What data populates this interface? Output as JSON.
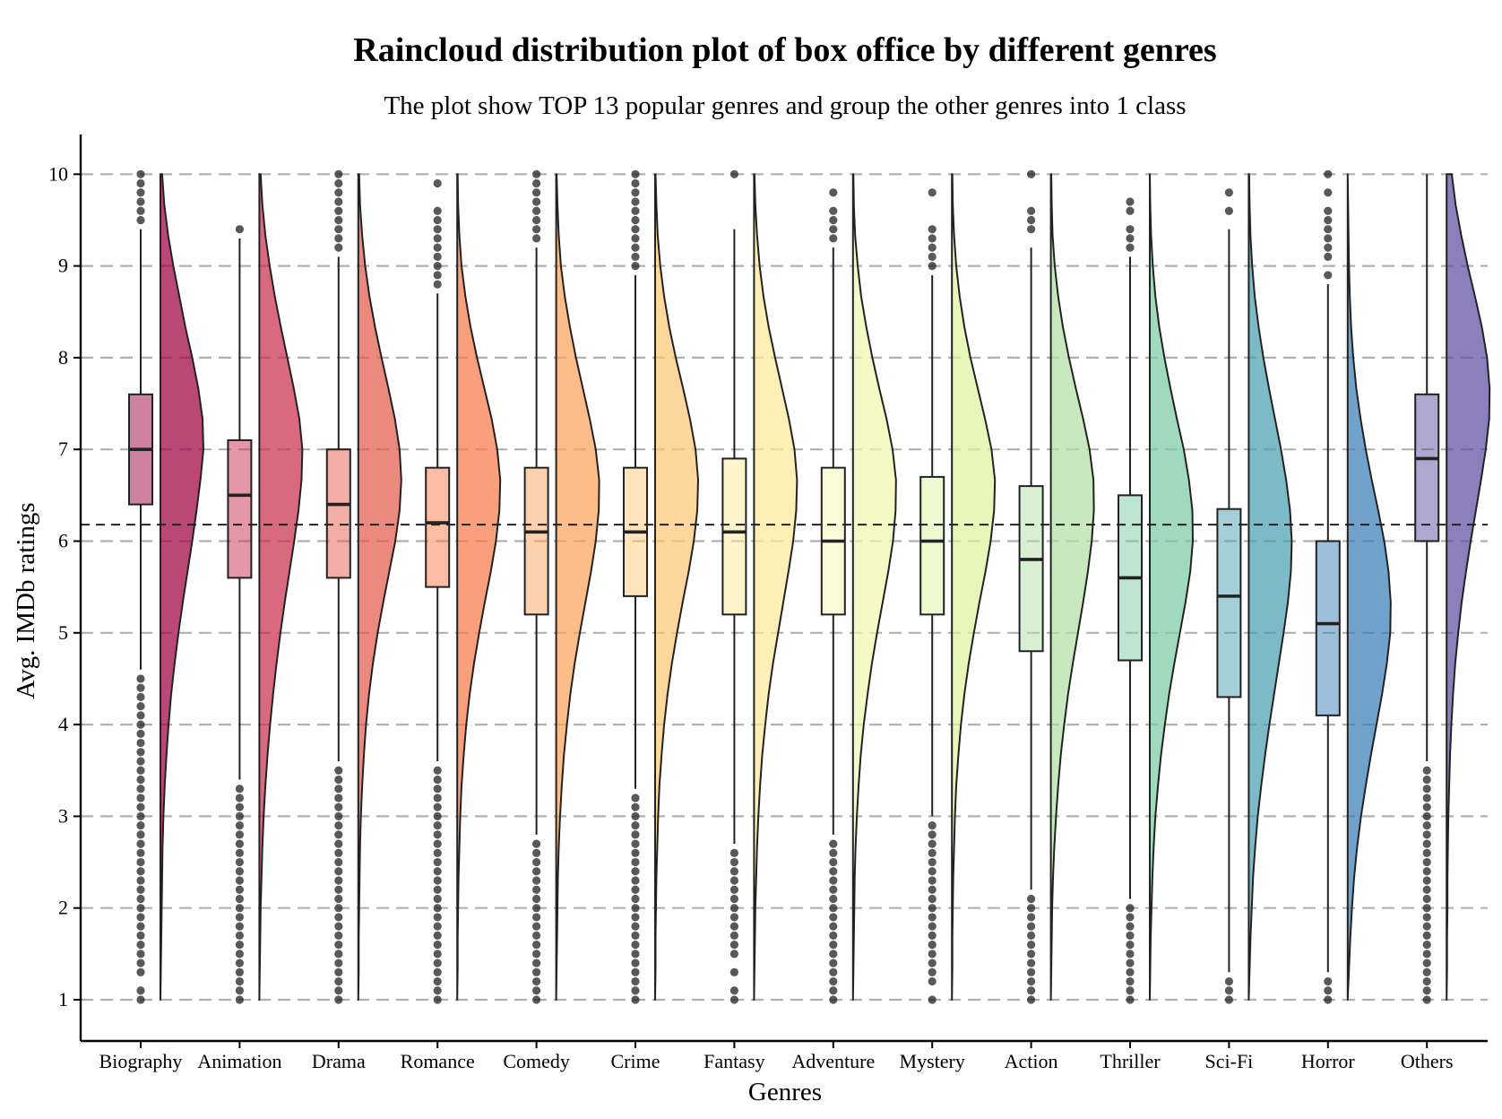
{
  "chart_data": {
    "type": "raincloud",
    "title": "Raincloud distribution plot of box office by different genres",
    "subtitle": "The plot show TOP 13 popular genres and group the other genres into 1 class",
    "xlabel": "Genres",
    "ylabel": "Avg. IMDb ratings",
    "ylim": [
      0.55,
      10.45
    ],
    "yticks": [
      1,
      2,
      3,
      4,
      5,
      6,
      7,
      8,
      9,
      10
    ],
    "grid": "horizontal dashed",
    "reference_line": 6.18,
    "categories": [
      "Biography",
      "Animation",
      "Drama",
      "Romance",
      "Comedy",
      "Crime",
      "Fantasy",
      "Adventure",
      "Mystery",
      "Action",
      "Thriller",
      "Sci-Fi",
      "Horror",
      "Others"
    ],
    "series": [
      {
        "genre": "Biography",
        "color": "#9E0142",
        "q1": 6.4,
        "median": 7.0,
        "q3": 7.6,
        "whisker_low": 4.6,
        "whisker_high": 9.4,
        "outliers_low": [
          1.0,
          1.1,
          1.3,
          1.4,
          1.5,
          1.6,
          1.7,
          1.8,
          1.9,
          2.0,
          2.1,
          2.2,
          2.3,
          2.4,
          2.5,
          2.6,
          2.7,
          2.8,
          2.9,
          3.0,
          3.1,
          3.2,
          3.3,
          3.4,
          3.5,
          3.6,
          3.7,
          3.8,
          3.9,
          4.0,
          4.1,
          4.2,
          4.3,
          4.4,
          4.5
        ],
        "outliers_high": [
          9.5,
          9.6,
          9.7,
          9.8,
          9.9,
          10.0
        ],
        "density": [
          0.0,
          0.01,
          0.02,
          0.03,
          0.04,
          0.05,
          0.07,
          0.1,
          0.14,
          0.19,
          0.25,
          0.33,
          0.42,
          0.52,
          0.63,
          0.74,
          0.84,
          0.93,
          1.0,
          0.98,
          0.88,
          0.74,
          0.58,
          0.44,
          0.3,
          0.18,
          0.09,
          0.04
        ]
      },
      {
        "genre": "Animation",
        "color": "#C92F4E",
        "q1": 5.6,
        "median": 6.5,
        "q3": 7.1,
        "whisker_low": 3.4,
        "whisker_high": 9.3,
        "outliers_low": [
          1.0,
          1.1,
          1.2,
          1.3,
          1.4,
          1.5,
          1.6,
          1.7,
          1.8,
          1.9,
          2.0,
          2.1,
          2.2,
          2.3,
          2.4,
          2.5,
          2.6,
          2.7,
          2.8,
          2.9,
          3.0,
          3.1,
          3.2,
          3.3
        ],
        "outliers_high": [
          9.4
        ],
        "density": [
          0.0,
          0.01,
          0.02,
          0.03,
          0.05,
          0.07,
          0.1,
          0.14,
          0.19,
          0.25,
          0.32,
          0.4,
          0.49,
          0.59,
          0.7,
          0.81,
          0.91,
          0.98,
          1.0,
          0.93,
          0.8,
          0.65,
          0.5,
          0.36,
          0.24,
          0.14,
          0.07,
          0.03
        ]
      },
      {
        "genre": "Drama",
        "color": "#E55B4E",
        "q1": 5.6,
        "median": 6.4,
        "q3": 7.0,
        "whisker_low": 3.6,
        "whisker_high": 9.1,
        "outliers_low": [
          1.0,
          1.1,
          1.2,
          1.3,
          1.4,
          1.5,
          1.6,
          1.7,
          1.8,
          1.9,
          2.0,
          2.1,
          2.2,
          2.3,
          2.4,
          2.5,
          2.6,
          2.7,
          2.8,
          2.9,
          3.0,
          3.1,
          3.2,
          3.3,
          3.4,
          3.5
        ],
        "outliers_high": [
          9.2,
          9.3,
          9.4,
          9.5,
          9.6,
          9.7,
          9.8,
          9.9,
          10.0
        ],
        "density": [
          0.0,
          0.01,
          0.01,
          0.02,
          0.03,
          0.04,
          0.06,
          0.09,
          0.13,
          0.18,
          0.25,
          0.34,
          0.45,
          0.58,
          0.72,
          0.86,
          0.96,
          1.0,
          0.96,
          0.85,
          0.7,
          0.54,
          0.39,
          0.26,
          0.16,
          0.09,
          0.04,
          0.02
        ]
      },
      {
        "genre": "Romance",
        "color": "#F67A49",
        "q1": 5.5,
        "median": 6.2,
        "q3": 6.8,
        "whisker_low": 3.6,
        "whisker_high": 8.7,
        "outliers_low": [
          1.0,
          1.1,
          1.2,
          1.3,
          1.4,
          1.5,
          1.6,
          1.7,
          1.8,
          1.9,
          2.0,
          2.1,
          2.2,
          2.3,
          2.4,
          2.5,
          2.6,
          2.7,
          2.8,
          2.9,
          3.0,
          3.1,
          3.2,
          3.3,
          3.4,
          3.5
        ],
        "outliers_high": [
          8.8,
          8.9,
          9.0,
          9.1,
          9.2,
          9.3,
          9.4,
          9.5,
          9.6,
          9.9
        ],
        "density": [
          0.0,
          0.01,
          0.01,
          0.02,
          0.03,
          0.05,
          0.07,
          0.1,
          0.15,
          0.21,
          0.29,
          0.39,
          0.51,
          0.64,
          0.78,
          0.9,
          0.98,
          1.0,
          0.93,
          0.8,
          0.63,
          0.46,
          0.31,
          0.19,
          0.1,
          0.05,
          0.02,
          0.01
        ]
      },
      {
        "genre": "Comedy",
        "color": "#FBA45C",
        "q1": 5.2,
        "median": 6.1,
        "q3": 6.8,
        "whisker_low": 2.8,
        "whisker_high": 9.2,
        "outliers_low": [
          1.0,
          1.1,
          1.2,
          1.3,
          1.4,
          1.5,
          1.6,
          1.7,
          1.8,
          1.9,
          2.0,
          2.1,
          2.2,
          2.3,
          2.4,
          2.5,
          2.6,
          2.7
        ],
        "outliers_high": [
          9.3,
          9.4,
          9.5,
          9.6,
          9.7,
          9.8,
          9.9,
          10.0
        ],
        "density": [
          0.0,
          0.01,
          0.02,
          0.03,
          0.04,
          0.06,
          0.09,
          0.13,
          0.18,
          0.25,
          0.33,
          0.43,
          0.55,
          0.68,
          0.81,
          0.92,
          0.99,
          1.0,
          0.92,
          0.78,
          0.62,
          0.46,
          0.32,
          0.2,
          0.11,
          0.06,
          0.03,
          0.01
        ]
      },
      {
        "genre": "Crime",
        "color": "#FDC877",
        "q1": 5.4,
        "median": 6.1,
        "q3": 6.8,
        "whisker_low": 3.3,
        "whisker_high": 8.9,
        "outliers_low": [
          1.0,
          1.1,
          1.2,
          1.3,
          1.4,
          1.5,
          1.6,
          1.7,
          1.8,
          1.9,
          2.0,
          2.1,
          2.2,
          2.3,
          2.4,
          2.5,
          2.6,
          2.7,
          2.8,
          2.9,
          3.0,
          3.1,
          3.2
        ],
        "outliers_high": [
          9.0,
          9.1,
          9.2,
          9.3,
          9.4,
          9.5,
          9.6,
          9.7,
          9.8,
          9.9,
          10.0
        ],
        "density": [
          0.0,
          0.01,
          0.01,
          0.02,
          0.03,
          0.05,
          0.07,
          0.1,
          0.15,
          0.21,
          0.29,
          0.39,
          0.51,
          0.64,
          0.78,
          0.9,
          0.98,
          1.0,
          0.94,
          0.81,
          0.65,
          0.48,
          0.33,
          0.21,
          0.12,
          0.06,
          0.03,
          0.01
        ]
      },
      {
        "genre": "Fantasy",
        "color": "#FEE99A",
        "q1": 5.2,
        "median": 6.1,
        "q3": 6.9,
        "whisker_low": 2.7,
        "whisker_high": 9.4,
        "outliers_low": [
          1.0,
          1.1,
          1.3,
          1.5,
          1.6,
          1.7,
          1.8,
          1.9,
          2.0,
          2.1,
          2.2,
          2.3,
          2.4,
          2.5,
          2.6
        ],
        "outliers_high": [
          10.0
        ],
        "density": [
          0.0,
          0.01,
          0.02,
          0.03,
          0.05,
          0.07,
          0.1,
          0.14,
          0.19,
          0.26,
          0.34,
          0.44,
          0.56,
          0.68,
          0.8,
          0.91,
          0.98,
          1.0,
          0.94,
          0.81,
          0.65,
          0.49,
          0.34,
          0.22,
          0.13,
          0.07,
          0.03,
          0.01
        ]
      },
      {
        "genre": "Adventure",
        "color": "#F1F8AD",
        "q1": 5.2,
        "median": 6.0,
        "q3": 6.8,
        "whisker_low": 2.8,
        "whisker_high": 9.2,
        "outliers_low": [
          1.0,
          1.1,
          1.2,
          1.3,
          1.4,
          1.5,
          1.6,
          1.7,
          1.8,
          1.9,
          2.0,
          2.1,
          2.2,
          2.3,
          2.4,
          2.5,
          2.6,
          2.7
        ],
        "outliers_high": [
          9.3,
          9.4,
          9.5,
          9.6,
          9.8
        ],
        "density": [
          0.0,
          0.01,
          0.02,
          0.03,
          0.04,
          0.06,
          0.09,
          0.13,
          0.18,
          0.25,
          0.34,
          0.44,
          0.56,
          0.69,
          0.82,
          0.93,
          0.99,
          1.0,
          0.92,
          0.78,
          0.61,
          0.45,
          0.31,
          0.19,
          0.11,
          0.05,
          0.02,
          0.01
        ]
      },
      {
        "genre": "Mystery",
        "color": "#E0F3A0",
        "q1": 5.2,
        "median": 6.0,
        "q3": 6.7,
        "whisker_low": 3.0,
        "whisker_high": 8.9,
        "outliers_low": [
          1.0,
          1.2,
          1.3,
          1.4,
          1.5,
          1.6,
          1.7,
          1.8,
          1.9,
          2.0,
          2.1,
          2.2,
          2.3,
          2.4,
          2.5,
          2.6,
          2.7,
          2.8,
          2.9
        ],
        "outliers_high": [
          9.0,
          9.1,
          9.2,
          9.3,
          9.4,
          9.8
        ],
        "density": [
          0.0,
          0.01,
          0.01,
          0.02,
          0.03,
          0.05,
          0.07,
          0.1,
          0.15,
          0.21,
          0.29,
          0.39,
          0.51,
          0.64,
          0.78,
          0.9,
          0.98,
          1.0,
          0.92,
          0.77,
          0.6,
          0.43,
          0.29,
          0.18,
          0.1,
          0.05,
          0.02,
          0.01
        ]
      },
      {
        "genre": "Action",
        "color": "#B3E0A6",
        "q1": 4.8,
        "median": 5.8,
        "q3": 6.6,
        "whisker_low": 2.2,
        "whisker_high": 9.2,
        "outliers_low": [
          1.0,
          1.1,
          1.2,
          1.3,
          1.4,
          1.5,
          1.6,
          1.7,
          1.8,
          1.9,
          2.0,
          2.1
        ],
        "outliers_high": [
          9.4,
          9.5,
          9.6,
          10.0
        ],
        "density": [
          0.0,
          0.01,
          0.02,
          0.03,
          0.05,
          0.08,
          0.12,
          0.17,
          0.23,
          0.31,
          0.4,
          0.51,
          0.63,
          0.75,
          0.86,
          0.95,
          1.0,
          0.99,
          0.9,
          0.75,
          0.58,
          0.42,
          0.28,
          0.17,
          0.09,
          0.04,
          0.02,
          0.01
        ]
      },
      {
        "genre": "Thriller",
        "color": "#7DCBA4",
        "q1": 4.7,
        "median": 5.6,
        "q3": 6.5,
        "whisker_low": 2.1,
        "whisker_high": 9.1,
        "outliers_low": [
          1.0,
          1.1,
          1.2,
          1.3,
          1.4,
          1.5,
          1.6,
          1.7,
          1.8,
          1.9,
          2.0
        ],
        "outliers_high": [
          9.2,
          9.3,
          9.4,
          9.6,
          9.7
        ],
        "density": [
          0.0,
          0.01,
          0.02,
          0.04,
          0.06,
          0.09,
          0.13,
          0.19,
          0.26,
          0.35,
          0.45,
          0.57,
          0.7,
          0.83,
          0.94,
          1.0,
          0.99,
          0.91,
          0.79,
          0.63,
          0.48,
          0.34,
          0.22,
          0.13,
          0.07,
          0.03,
          0.01,
          0.0
        ]
      },
      {
        "genre": "Sci-Fi",
        "color": "#4BA0B1",
        "q1": 4.3,
        "median": 5.4,
        "q3": 6.35,
        "whisker_low": 1.3,
        "whisker_high": 9.4,
        "outliers_low": [
          1.0,
          1.1,
          1.2
        ],
        "outliers_high": [
          9.6,
          9.8
        ],
        "density": [
          0.0,
          0.02,
          0.04,
          0.07,
          0.1,
          0.15,
          0.21,
          0.29,
          0.38,
          0.48,
          0.59,
          0.7,
          0.81,
          0.91,
          0.98,
          1.0,
          0.96,
          0.87,
          0.75,
          0.61,
          0.47,
          0.34,
          0.23,
          0.14,
          0.08,
          0.04,
          0.02,
          0.01
        ]
      },
      {
        "genre": "Horror",
        "color": "#3A7EB8",
        "q1": 4.1,
        "median": 5.1,
        "q3": 6.0,
        "whisker_low": 1.3,
        "whisker_high": 8.8,
        "outliers_low": [
          1.0,
          1.1,
          1.2
        ],
        "outliers_high": [
          8.9,
          9.1,
          9.2,
          9.3,
          9.4,
          9.5,
          9.6,
          9.8,
          10.0
        ],
        "density": [
          0.0,
          0.03,
          0.06,
          0.1,
          0.15,
          0.22,
          0.31,
          0.42,
          0.54,
          0.67,
          0.8,
          0.91,
          0.99,
          1.0,
          0.95,
          0.85,
          0.71,
          0.56,
          0.42,
          0.3,
          0.2,
          0.13,
          0.08,
          0.05,
          0.03,
          0.02,
          0.01,
          0.0
        ]
      },
      {
        "genre": "Others",
        "color": "#5E4FA2",
        "q1": 6.0,
        "median": 6.9,
        "q3": 7.6,
        "whisker_low": 3.6,
        "whisker_high": 10.0,
        "outliers_low": [
          1.0,
          1.1,
          1.2,
          1.3,
          1.4,
          1.5,
          1.6,
          1.7,
          1.8,
          1.9,
          2.0,
          2.1,
          2.2,
          2.3,
          2.4,
          2.5,
          2.6,
          2.7,
          2.8,
          2.9,
          3.0,
          3.1,
          3.2,
          3.3,
          3.4,
          3.5
        ],
        "outliers_high": [],
        "density": [
          0.0,
          0.01,
          0.01,
          0.02,
          0.02,
          0.03,
          0.04,
          0.06,
          0.08,
          0.11,
          0.15,
          0.2,
          0.27,
          0.35,
          0.45,
          0.56,
          0.68,
          0.8,
          0.91,
          0.99,
          1.0,
          0.94,
          0.82,
          0.66,
          0.49,
          0.34,
          0.21,
          0.12
        ]
      }
    ]
  }
}
